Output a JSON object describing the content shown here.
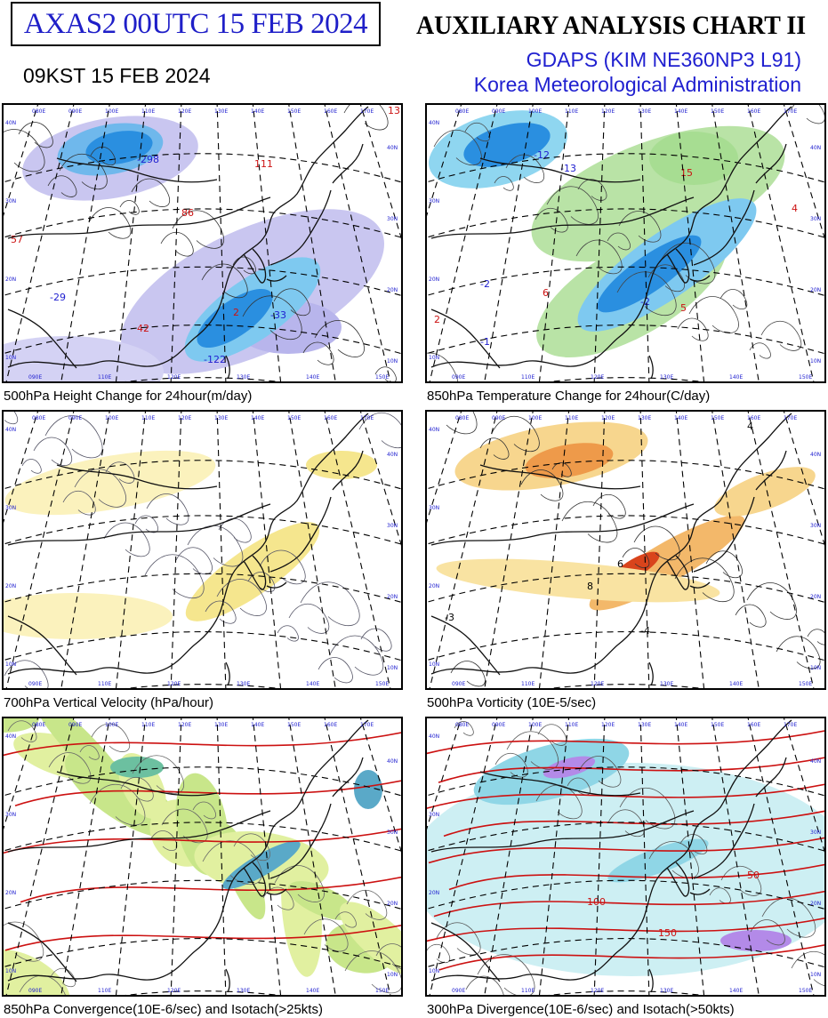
{
  "header": {
    "product_id": "AXAS2  00UTC 15 FEB 2024",
    "local_time": "09KST 15 FEB 2024",
    "chart_title": "AUXILIARY ANALYSIS CHART II",
    "model": "GDAPS (KIM NE360NP3 L91)",
    "agency": "Korea Meteorological Administration"
  },
  "colors": {
    "label_blue": "#2020d0",
    "isotach_red": "#cc1111",
    "coast": "#111111"
  },
  "map_labels": {
    "lon_top": [
      "080E",
      "090E",
      "100E",
      "110E",
      "120E",
      "130E",
      "140E",
      "150E",
      "160E",
      "170E"
    ],
    "lon_bottom": [
      "090E",
      "110E",
      "120E",
      "130E",
      "140E",
      "150E"
    ],
    "lat_left": [
      "40N",
      "30N",
      "20N",
      "10N"
    ],
    "lat_right": [
      "40N",
      "30N",
      "20N",
      "10N"
    ]
  },
  "panels": [
    {
      "caption": "500hPa Height Change for 24hour(m/day)",
      "values": [
        {
          "text": "-298",
          "color": "#2020d0"
        },
        {
          "text": "-122",
          "color": "#2020d0"
        },
        {
          "text": "-29",
          "color": "#2020d0"
        },
        {
          "text": "-33",
          "color": "#2020d0"
        },
        {
          "text": "57",
          "color": "#cc1111"
        },
        {
          "text": "86",
          "color": "#cc1111"
        },
        {
          "text": "111",
          "color": "#cc1111"
        },
        {
          "text": "42",
          "color": "#cc1111"
        },
        {
          "text": "2",
          "color": "#cc1111"
        },
        {
          "text": "13",
          "color": "#cc1111"
        }
      ]
    },
    {
      "caption": "850hPa Temperature Change for 24hour(C/day)",
      "values": [
        {
          "text": "-12",
          "color": "#2020d0"
        },
        {
          "text": "-13",
          "color": "#2020d0"
        },
        {
          "text": "-2",
          "color": "#2020d0"
        },
        {
          "text": "-1",
          "color": "#2020d0"
        },
        {
          "text": "-2",
          "color": "#2020d0"
        },
        {
          "text": "15",
          "color": "#cc1111"
        },
        {
          "text": "6",
          "color": "#cc1111"
        },
        {
          "text": "5",
          "color": "#cc1111"
        },
        {
          "text": "2",
          "color": "#cc1111"
        },
        {
          "text": "4",
          "color": "#cc1111"
        }
      ]
    },
    {
      "caption": "700hPa Vertical Velocity (hPa/hour)",
      "values": []
    },
    {
      "caption": "500hPa Vorticity (10E-5/sec)",
      "values": [
        {
          "text": "-4",
          "color": "#000000"
        },
        {
          "text": "-3",
          "color": "#000000"
        },
        {
          "text": "4",
          "color": "#000000"
        },
        {
          "text": "8",
          "color": "#000000"
        },
        {
          "text": "6",
          "color": "#000000"
        }
      ]
    },
    {
      "caption": "850hPa Convergence(10E-6/sec) and Isotach(>25kts)",
      "values": []
    },
    {
      "caption": "300hPa Divergence(10E-6/sec) and Isotach(>50kts)",
      "values": [
        {
          "text": "150",
          "color": "#cc1111"
        },
        {
          "text": "100",
          "color": "#cc1111"
        },
        {
          "text": "50",
          "color": "#cc1111"
        }
      ]
    }
  ]
}
